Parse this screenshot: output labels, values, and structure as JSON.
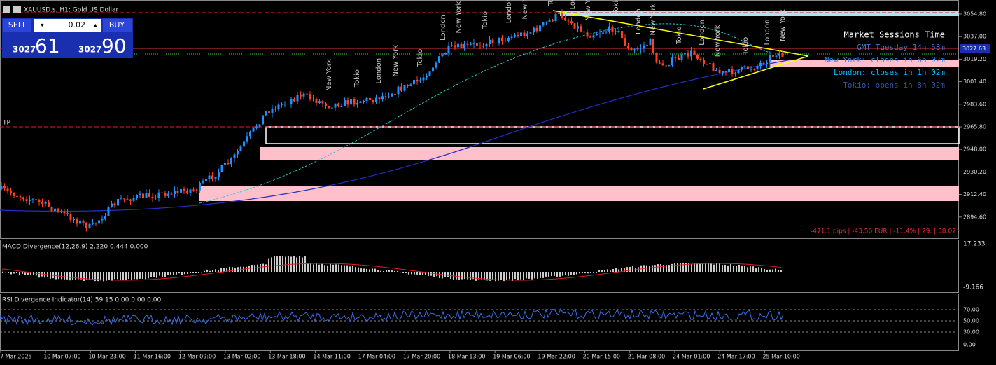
{
  "header": {
    "symbol": "XAUUSD.s, H1:  Gold US Dollar"
  },
  "trade_panel": {
    "sell": "SELL",
    "buy": "BUY",
    "lot": "0.02",
    "bid_prefix": "3027",
    "bid_big": "61",
    "ask_prefix": "3027",
    "ask_big": "90"
  },
  "price_axis": {
    "labels": [
      "3054.80",
      "3037.00",
      "3019.20",
      "3001.40",
      "2983.60",
      "2965.80",
      "2948.00",
      "2930.20",
      "2912.40",
      "2894.60"
    ],
    "current": "3027.63"
  },
  "tp_label": "TP",
  "sessions_panel": {
    "title": "Market Sessions Time",
    "lines": [
      "GMT Tuesday 14h 58m",
      "New York: closes in 6h 02m",
      "London: closes in 1h 02m",
      "Tokio: opens in 8h 02m"
    ]
  },
  "session_labels": [
    "New York",
    "Tokio",
    "London",
    "New York",
    "Tokio",
    "London",
    "New York",
    "Tokio",
    "London",
    "New York",
    "Tokio",
    "London",
    "New York",
    "Tokio",
    "London",
    "New York",
    "Tokio",
    "London",
    "New York",
    "Tokio",
    "London",
    "New York"
  ],
  "stats": "-471.1 pips | -43.56 EUR | -11.4% | 29. | 58:02",
  "macd": {
    "label": "MACD Divergence(12,26,9) 2.220 0.444 0.000",
    "axis": [
      "17.233",
      "-9.166"
    ]
  },
  "rsi": {
    "label": "RSI Divergence Indicator(14) 59.15 0.00 0.00 0.00",
    "axis": [
      "70.00",
      "50.00",
      "30.00",
      "0.00"
    ]
  },
  "time_axis": [
    "7 Mar 2025",
    "10 Mar 07:00",
    "10 Mar 23:00",
    "11 Mar 16:00",
    "12 Mar 09:00",
    "13 Mar 02:00",
    "13 Mar 18:00",
    "14 Mar 11:00",
    "17 Mar 04:00",
    "17 Mar 20:00",
    "18 Mar 13:00",
    "19 Mar 06:00",
    "19 Mar 22:00",
    "20 Mar 15:00",
    "21 Mar 08:00",
    "24 Mar 01:00",
    "24 Mar 17:00",
    "25 Mar 10:00"
  ]
}
